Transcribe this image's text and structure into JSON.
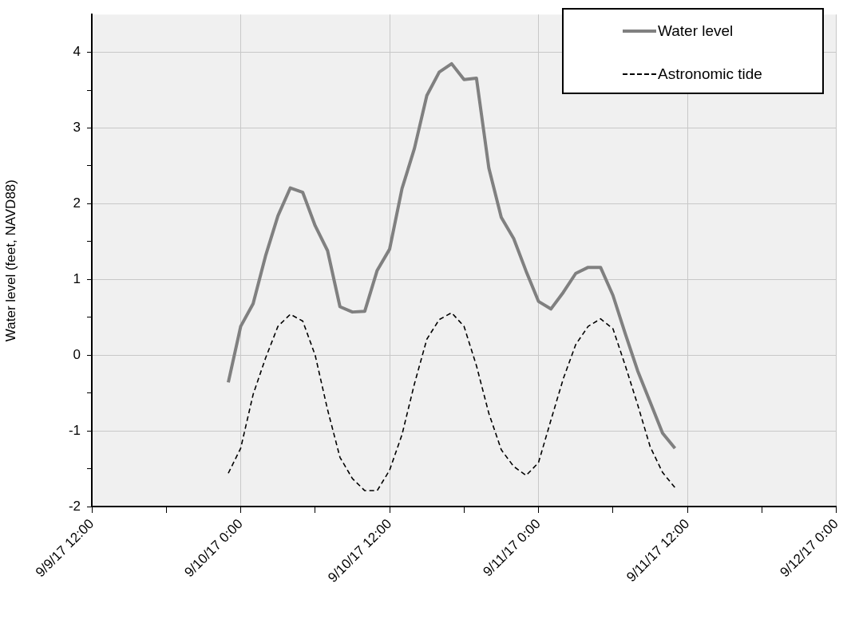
{
  "chart_data": {
    "type": "line",
    "ylabel": "Water level (feet, NAVD88)",
    "x": [
      "--09-09T23:00",
      "--09-10T00:00",
      "--09-10T01:00",
      "--09-10T02:00",
      "--09-10T03:00",
      "--09-10T04:00",
      "--09-10T05:00",
      "--09-10T06:00",
      "--09-10T07:00",
      "--09-10T08:00",
      "--09-10T09:00",
      "--09-10T10:00",
      "--09-10T11:00",
      "--09-10T12:00",
      "--09-10T13:00",
      "--09-10T14:00",
      "--09-10T15:00",
      "--09-10T16:00",
      "--09-10T17:00",
      "--09-10T18:00",
      "--09-10T19:00",
      "--09-10T20:00",
      "--09-10T21:00",
      "--09-10T22:00",
      "--09-10T23:00",
      "--09-11T00:00",
      "--09-11T01:00",
      "--09-11T02:00",
      "--09-11T03:00",
      "--09-11T04:00",
      "--09-11T05:00",
      "--09-11T06:00",
      "--09-11T07:00",
      "--09-11T08:00",
      "--09-11T09:00",
      "--09-11T10:00",
      "--09-11T11:00"
    ],
    "series": [
      {
        "name": "Water level",
        "color": "#808080",
        "line_style": "solid",
        "values": [
          -0.36,
          0.38,
          0.68,
          1.31,
          1.84,
          2.21,
          2.15,
          1.71,
          1.38,
          0.64,
          0.57,
          0.58,
          1.12,
          1.4,
          2.2,
          2.73,
          3.43,
          3.74,
          3.85,
          3.64,
          3.66,
          2.47,
          1.82,
          1.54,
          1.11,
          0.71,
          0.61,
          0.83,
          1.08,
          1.16,
          1.16,
          0.79,
          0.28,
          -0.21,
          -0.62,
          -1.03,
          -1.23
        ]
      },
      {
        "name": "Astronomic tide",
        "color": "#000000",
        "line_style": "dashed",
        "values": [
          -1.56,
          -1.23,
          -0.52,
          -0.04,
          0.38,
          0.54,
          0.45,
          0.0,
          -0.72,
          -1.35,
          -1.63,
          -1.79,
          -1.79,
          -1.52,
          -1.05,
          -0.38,
          0.21,
          0.47,
          0.56,
          0.38,
          -0.14,
          -0.77,
          -1.25,
          -1.47,
          -1.59,
          -1.42,
          -0.86,
          -0.31,
          0.14,
          0.38,
          0.48,
          0.35,
          -0.14,
          -0.66,
          -1.21,
          -1.55,
          -1.75
        ]
      }
    ],
    "xlim": [
      "--09-09T12:00",
      "--09-12T00:00"
    ],
    "xticks": [
      {
        "value": "--09-09T12:00",
        "label": "9/9/17 12:00"
      },
      {
        "value": "--09-09T18:00",
        "label": null
      },
      {
        "value": "--09-10T00:00",
        "label": "9/10/17 0:00"
      },
      {
        "value": "--09-10T06:00",
        "label": null
      },
      {
        "value": "--09-10T12:00",
        "label": "9/10/17 12:00"
      },
      {
        "value": "--09-10T18:00",
        "label": null
      },
      {
        "value": "--09-11T00:00",
        "label": "9/11/17 0:00"
      },
      {
        "value": "--09-11T06:00",
        "label": null
      },
      {
        "value": "--09-11T12:00",
        "label": "9/11/17 12:00"
      },
      {
        "value": "--09-11T18:00",
        "label": null
      },
      {
        "value": "--09-12T00:00",
        "label": "9/12/17 0:00"
      }
    ],
    "ylim": [
      -2,
      4.5
    ],
    "yticks": [
      -2,
      {
        "value": -1.5,
        "label": null
      },
      -1,
      {
        "value": -0.5,
        "label": null
      },
      0,
      {
        "value": 0.5,
        "label": null
      },
      1,
      {
        "value": 1.5,
        "label": null
      },
      2,
      {
        "value": 2.5,
        "label": null
      },
      3,
      {
        "value": 3.5,
        "label": null
      },
      4
    ],
    "grid": true,
    "legend": "top right",
    "marker": "none"
  }
}
